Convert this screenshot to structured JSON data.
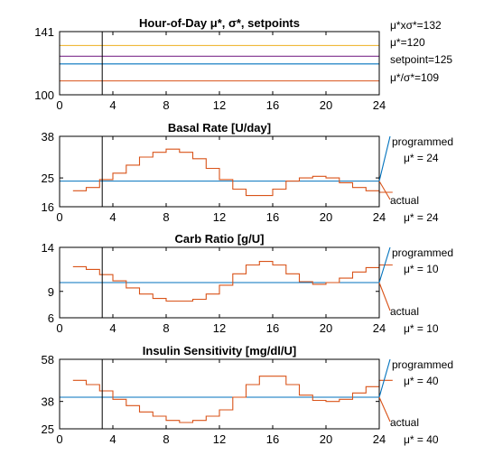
{
  "chart_data": [
    {
      "type": "line",
      "title": "Hour-of-Day μ*, σ*, setpoints",
      "xlim": [
        0,
        24
      ],
      "ylim": [
        100,
        141
      ],
      "x_ticks": [
        0,
        4,
        8,
        12,
        16,
        20,
        24
      ],
      "y_ticks": [
        100,
        141
      ],
      "vline_x": 3.2,
      "series": [
        {
          "name": "μ*xσ*=132",
          "y": 132,
          "color": "#EDB120"
        },
        {
          "name": "μ*=120",
          "y": 120,
          "color": "#0072BD"
        },
        {
          "name": "setpoint=125",
          "y": 125,
          "color": "#7E2F8E"
        },
        {
          "name": "μ*/σ*=109",
          "y": 109,
          "color": "#D95319"
        }
      ]
    },
    {
      "type": "line",
      "title": "Basal Rate [U/day]",
      "xlim": [
        0,
        24
      ],
      "ylim": [
        16,
        38
      ],
      "x_ticks": [
        0,
        4,
        8,
        12,
        16,
        20,
        24
      ],
      "y_ticks": [
        16,
        25,
        38
      ],
      "vline_x": 3.2,
      "series": [
        {
          "name": "programmed",
          "color": "#0072BD",
          "constant": 24
        },
        {
          "name": "actual",
          "color": "#D95319",
          "step_start": 1,
          "values": [
            21,
            22,
            24.5,
            26.5,
            29,
            31.5,
            33,
            34,
            33,
            31,
            28,
            24.5,
            21.5,
            19.5,
            19.5,
            21.5,
            24,
            25,
            25.5,
            25,
            23.5,
            22,
            21,
            20.5
          ]
        }
      ],
      "annotations": {
        "top": "programmed",
        "top_mu": "μ* = 24",
        "bottom": "actual",
        "bottom_mu": "μ* = 24"
      }
    },
    {
      "type": "line",
      "title": "Carb Ratio [g/U]",
      "xlim": [
        0,
        24
      ],
      "ylim": [
        6,
        14
      ],
      "x_ticks": [
        0,
        4,
        8,
        12,
        16,
        20,
        24
      ],
      "y_ticks": [
        6,
        9,
        14
      ],
      "vline_x": 3.2,
      "series": [
        {
          "name": "programmed",
          "color": "#0072BD",
          "constant": 10
        },
        {
          "name": "actual",
          "color": "#D95319",
          "step_start": 1,
          "values": [
            11.8,
            11.5,
            10.9,
            10.2,
            9.4,
            8.7,
            8.2,
            7.9,
            7.9,
            8.1,
            8.7,
            9.7,
            11,
            12,
            12.4,
            12,
            11,
            10.1,
            9.8,
            10,
            10.5,
            11.2,
            11.7,
            12
          ]
        }
      ],
      "annotations": {
        "top": "programmed",
        "top_mu": "μ* = 10",
        "bottom": "actual",
        "bottom_mu": "μ* = 10"
      }
    },
    {
      "type": "line",
      "title": "Insulin Sensitivity [mg/dl/U]",
      "xlim": [
        0,
        24
      ],
      "ylim": [
        25,
        58
      ],
      "x_ticks": [
        0,
        4,
        8,
        12,
        16,
        20,
        24
      ],
      "y_ticks": [
        25,
        38,
        58
      ],
      "vline_x": 3.2,
      "series": [
        {
          "name": "programmed",
          "color": "#0072BD",
          "constant": 40
        },
        {
          "name": "actual",
          "color": "#D95319",
          "step_start": 1,
          "values": [
            48,
            46,
            43,
            39,
            36,
            33,
            31,
            29,
            28,
            29,
            31,
            34,
            40,
            46,
            50,
            50,
            46,
            41,
            38.5,
            38,
            39,
            42,
            45,
            48
          ]
        }
      ],
      "annotations": {
        "top": "programmed",
        "top_mu": "μ* = 40",
        "bottom": "actual",
        "bottom_mu": "μ* = 40"
      }
    }
  ]
}
